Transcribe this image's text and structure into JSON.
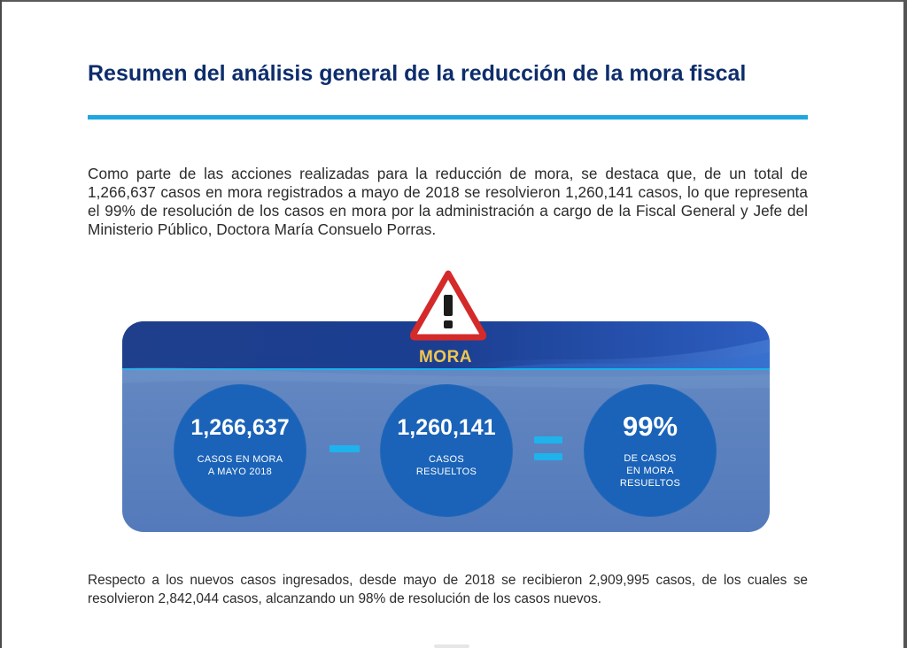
{
  "heading": {
    "title": "Resumen del análisis general de la reducción de la mora fiscal"
  },
  "intro_paragraph": "Como parte de las acciones realizadas para la reducción de mora, se destaca que, de un total de 1,266,637 casos en mora registrados a mayo de 2018 se resolvieron 1,260,141 casos, lo que representa el 99% de resolución de los casos en mora por la administración a cargo de la Fiscal General y Jefe del Ministerio Público, Doctora María Consuelo Porras.",
  "infographic": {
    "label": "MORA",
    "warning_icon": "warning-triangle-exclamation",
    "stats": [
      {
        "value": "1,266,637",
        "label_lines": [
          "CASOS EN MORA",
          "A MAYO 2018"
        ]
      },
      {
        "value": "1,260,141",
        "label_lines": [
          "CASOS",
          "RESUELTOS"
        ]
      },
      {
        "value": "99%",
        "label_lines": [
          "DE CASOS",
          "EN MORA",
          "RESUELTOS"
        ]
      }
    ],
    "operators": [
      "minus",
      "equals"
    ],
    "colors": {
      "title": "#0d2d6c",
      "accent_cyan": "#1fa7e1",
      "circle_blue": "#1a63b8",
      "banner_dark": "#1f3f8c",
      "mora_gold": "#f0c64e",
      "warning_red": "#d42a2a"
    }
  },
  "closing_paragraph": "Respecto a los nuevos casos ingresados, desde mayo de 2018 se recibieron 2,909,995 casos, de los cuales se resolvieron 2,842,044 casos, alcanzando un 98% de resolución de los casos nuevos."
}
